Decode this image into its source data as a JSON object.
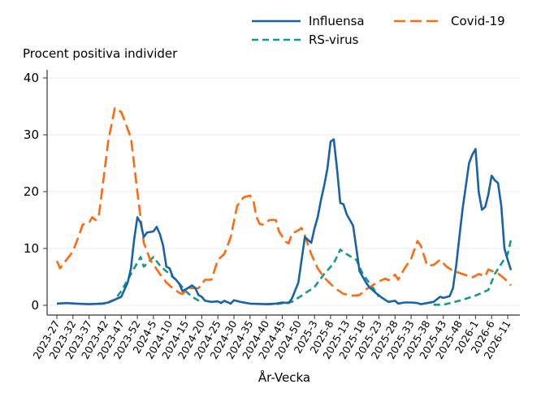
{
  "chart_data": {
    "type": "line",
    "title": "",
    "xlabel": "År-Vecka",
    "ylabel": "Procent positiva individer",
    "ylim": [
      0,
      40
    ],
    "yticks": [
      0,
      10,
      20,
      30,
      40
    ],
    "xticks": [
      "2023-27",
      "2023-32",
      "2023-37",
      "2023-42",
      "2023-47",
      "2023-52",
      "2024-5",
      "2024-10",
      "2024-15",
      "2024-20",
      "2024-25",
      "2024-30",
      "2024-35",
      "2024-40",
      "2024-45",
      "2024-50",
      "2025-3",
      "2025-8",
      "2025-13",
      "2025-18",
      "2025-23",
      "2025-28",
      "2025-33",
      "2025-38",
      "2025-43",
      "2025-48",
      "2026-1",
      "2026-6",
      "2026-11"
    ],
    "grid": true,
    "legend_placement": "top-right",
    "series": [
      {
        "name": "Influensa",
        "color": "#1763aa",
        "style": "solid",
        "points": [
          [
            "2023-27",
            0.3
          ],
          [
            "2023-30",
            0.4
          ],
          [
            "2023-33",
            0.3
          ],
          [
            "2023-37",
            0.2
          ],
          [
            "2023-41",
            0.3
          ],
          [
            "2023-43",
            0.5
          ],
          [
            "2023-45",
            1.0
          ],
          [
            "2023-47",
            1.5
          ],
          [
            "2023-49",
            4
          ],
          [
            "2023-50",
            6.5
          ],
          [
            "2023-51",
            11.5
          ],
          [
            "2023-52",
            15.5
          ],
          [
            "2024-1",
            14.5
          ],
          [
            "2024-2",
            12
          ],
          [
            "2024-3",
            12.8
          ],
          [
            "2024-5",
            13
          ],
          [
            "2024-6",
            13.8
          ],
          [
            "2024-7",
            12.5
          ],
          [
            "2024-8",
            10.5
          ],
          [
            "2024-9",
            6.8
          ],
          [
            "2024-10",
            6.5
          ],
          [
            "2024-11",
            5
          ],
          [
            "2024-12",
            4.5
          ],
          [
            "2024-13",
            3.8
          ],
          [
            "2024-14",
            2.5
          ],
          [
            "2024-15",
            2.8
          ],
          [
            "2024-17",
            3.5
          ],
          [
            "2024-18",
            3
          ],
          [
            "2024-19",
            1.8
          ],
          [
            "2024-20",
            1.5
          ],
          [
            "2024-21",
            0.8
          ],
          [
            "2024-23",
            0.6
          ],
          [
            "2024-25",
            0.7
          ],
          [
            "2024-26",
            0.4
          ],
          [
            "2024-27",
            0.8
          ],
          [
            "2024-29",
            0.3
          ],
          [
            "2024-30",
            0.9
          ],
          [
            "2024-32",
            0.6
          ],
          [
            "2024-35",
            0.3
          ],
          [
            "2024-40",
            0.2
          ],
          [
            "2024-43",
            0.3
          ],
          [
            "2024-45",
            0.5
          ],
          [
            "2024-47",
            0.4
          ],
          [
            "2024-48",
            1.2
          ],
          [
            "2024-50",
            4
          ],
          [
            "2024-51",
            8
          ],
          [
            "2024-52",
            12
          ],
          [
            "2025-1",
            11.5
          ],
          [
            "2025-2",
            11
          ],
          [
            "2025-3",
            13.5
          ],
          [
            "2025-4",
            15.5
          ],
          [
            "2025-5",
            18.5
          ],
          [
            "2025-6",
            21
          ],
          [
            "2025-7",
            24
          ],
          [
            "2025-8",
            28.8
          ],
          [
            "2025-9",
            29.2
          ],
          [
            "2025-10",
            24
          ],
          [
            "2025-11",
            18
          ],
          [
            "2025-12",
            17.8
          ],
          [
            "2025-13",
            16
          ],
          [
            "2025-14",
            15
          ],
          [
            "2025-15",
            14
          ],
          [
            "2025-16",
            10
          ],
          [
            "2025-17",
            6
          ],
          [
            "2025-18",
            5
          ],
          [
            "2025-19",
            4
          ],
          [
            "2025-20",
            3.2
          ],
          [
            "2025-22",
            2.2
          ],
          [
            "2025-24",
            1.3
          ],
          [
            "2025-26",
            0.6
          ],
          [
            "2025-28",
            0.8
          ],
          [
            "2025-29",
            0.3
          ],
          [
            "2025-31",
            0.5
          ],
          [
            "2025-33",
            0.5
          ],
          [
            "2025-35",
            0.4
          ],
          [
            "2025-36",
            0.2
          ],
          [
            "2025-38",
            0.4
          ],
          [
            "2025-40",
            0.6
          ],
          [
            "2025-42",
            1.5
          ],
          [
            "2025-43",
            1.3
          ],
          [
            "2025-45",
            1.6
          ],
          [
            "2025-46",
            3
          ],
          [
            "2025-47",
            7
          ],
          [
            "2025-48",
            12
          ],
          [
            "2025-49",
            17
          ],
          [
            "2025-50",
            21
          ],
          [
            "2025-51",
            25
          ],
          [
            "2025-52",
            26.5
          ],
          [
            "2026-1",
            27.5
          ],
          [
            "2026-2",
            20
          ],
          [
            "2026-3",
            16.8
          ],
          [
            "2026-4",
            17.3
          ],
          [
            "2026-5",
            19.5
          ],
          [
            "2026-6",
            22.8
          ],
          [
            "2026-7",
            22
          ],
          [
            "2026-8",
            21.5
          ],
          [
            "2026-9",
            17.5
          ],
          [
            "2026-10",
            10
          ],
          [
            "2026-11",
            8
          ],
          [
            "2026-12",
            6.2
          ]
        ]
      },
      {
        "name": "Covid-19",
        "color": "#ff6a10",
        "style": "long-dash",
        "points": [
          [
            "2023-27",
            7.8
          ],
          [
            "2023-28",
            6.5
          ],
          [
            "2023-32",
            9.5
          ],
          [
            "2023-34",
            12.5
          ],
          [
            "2023-35",
            14.2
          ],
          [
            "2023-37",
            14.5
          ],
          [
            "2023-38",
            15.5
          ],
          [
            "2023-39",
            15
          ],
          [
            "2023-40",
            15.5
          ],
          [
            "2023-41",
            20
          ],
          [
            "2023-43",
            29
          ],
          [
            "2023-45",
            34.7
          ],
          [
            "2023-47",
            34
          ],
          [
            "2023-48",
            32.5
          ],
          [
            "2023-50",
            29.5
          ],
          [
            "2023-52",
            20
          ],
          [
            "2024-2",
            11
          ],
          [
            "2024-4",
            8
          ],
          [
            "2024-7",
            5.5
          ],
          [
            "2024-9",
            4
          ],
          [
            "2024-11",
            3
          ],
          [
            "2024-13",
            2.2
          ],
          [
            "2024-14",
            2
          ],
          [
            "2024-16",
            3
          ],
          [
            "2024-19",
            3
          ],
          [
            "2024-21",
            4.5
          ],
          [
            "2024-23",
            4.5
          ],
          [
            "2024-25",
            8
          ],
          [
            "2024-27",
            9
          ],
          [
            "2024-29",
            12
          ],
          [
            "2024-31",
            17.5
          ],
          [
            "2024-33",
            19
          ],
          [
            "2024-35",
            19.3
          ],
          [
            "2024-36",
            18.5
          ],
          [
            "2024-37",
            15.5
          ],
          [
            "2024-38",
            14.3
          ],
          [
            "2024-39",
            14.2
          ],
          [
            "2024-41",
            15
          ],
          [
            "2024-43",
            15
          ],
          [
            "2024-44",
            13
          ],
          [
            "2024-46",
            11.2
          ],
          [
            "2024-47",
            10.9
          ],
          [
            "2024-48",
            12.6
          ],
          [
            "2024-50",
            13.2
          ],
          [
            "2024-51",
            13.6
          ],
          [
            "2024-52",
            12.3
          ],
          [
            "2025-2",
            9
          ],
          [
            "2025-4",
            6.5
          ],
          [
            "2025-6",
            4.9
          ],
          [
            "2025-9",
            3.2
          ],
          [
            "2025-12",
            2
          ],
          [
            "2025-15",
            1.7
          ],
          [
            "2025-17",
            1.8
          ],
          [
            "2025-19",
            2.8
          ],
          [
            "2025-23",
            4.2
          ],
          [
            "2025-25",
            4.7
          ],
          [
            "2025-26",
            4.4
          ],
          [
            "2025-28",
            5.4
          ],
          [
            "2025-29",
            4.5
          ],
          [
            "2025-31",
            6.5
          ],
          [
            "2025-33",
            8.2
          ],
          [
            "2025-35",
            11.3
          ],
          [
            "2025-36",
            10.5
          ],
          [
            "2025-38",
            7
          ],
          [
            "2025-40",
            7.1
          ],
          [
            "2025-42",
            8
          ],
          [
            "2025-44",
            6.8
          ],
          [
            "2025-46",
            6.1
          ],
          [
            "2025-50",
            5.3
          ],
          [
            "2025-52",
            4.9
          ],
          [
            "2026-2",
            5.5
          ],
          [
            "2026-4",
            5.1
          ],
          [
            "2026-5",
            6.3
          ],
          [
            "2026-8",
            5.6
          ],
          [
            "2026-10",
            4.7
          ],
          [
            "2026-12",
            3.5
          ]
        ]
      },
      {
        "name": "RS-virus",
        "color": "#159a8a",
        "style": "dash",
        "points": [
          [
            "2023-40",
            0.3
          ],
          [
            "2023-42",
            0.3
          ],
          [
            "2023-45",
            1
          ],
          [
            "2023-47",
            2.5
          ],
          [
            "2023-50",
            5.5
          ],
          [
            "2024-1",
            8.5
          ],
          [
            "2024-2",
            6.8
          ],
          [
            "2024-5",
            8.5
          ],
          [
            "2024-7",
            7
          ],
          [
            "2024-9",
            6
          ],
          [
            "2024-12",
            4.5
          ],
          [
            "2024-15",
            2.5
          ],
          [
            "2024-17",
            1.5
          ],
          [
            "2024-20",
            0.5
          ],
          null,
          [
            "2024-40",
            0.2
          ],
          [
            "2024-43",
            0.2
          ],
          [
            "2024-48",
            0.6
          ],
          [
            "2024-51",
            1.7
          ],
          [
            "2025-3",
            3.2
          ],
          [
            "2025-6",
            5.5
          ],
          [
            "2025-9",
            7.4
          ],
          [
            "2025-11",
            9.8
          ],
          [
            "2025-13",
            9
          ],
          [
            "2025-16",
            8
          ],
          [
            "2025-18",
            5.5
          ],
          [
            "2025-21",
            3.2
          ],
          [
            "2025-23",
            1.5
          ],
          null,
          [
            "2025-40",
            0.1
          ],
          [
            "2025-43",
            0.1
          ],
          [
            "2025-48",
            0.8
          ],
          [
            "2026-1",
            1.7
          ],
          [
            "2026-5",
            2.7
          ],
          [
            "2026-7",
            5.5
          ],
          [
            "2026-9",
            7.3
          ],
          [
            "2026-11",
            9
          ],
          [
            "2026-12",
            11.5
          ]
        ]
      }
    ]
  }
}
